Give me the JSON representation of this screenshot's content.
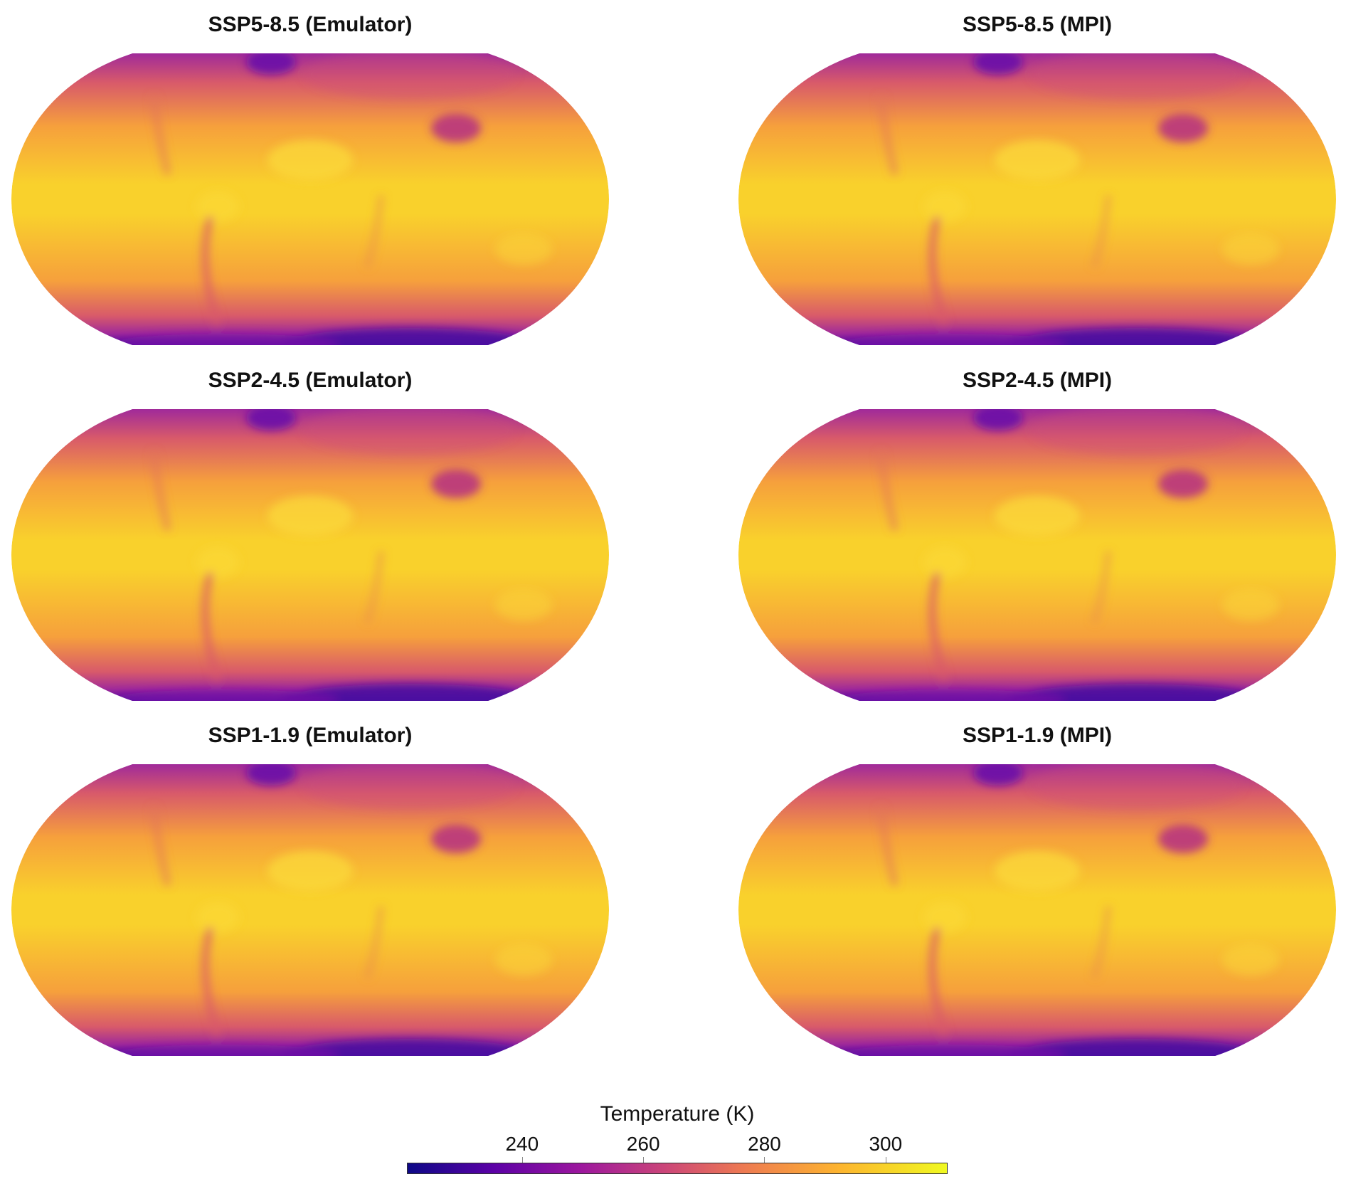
{
  "panels": [
    {
      "title": "SSP5-8.5 (Emulator)",
      "scenario": "SSP5-8.5",
      "source": "Emulator"
    },
    {
      "title": "SSP5-8.5 (MPI)",
      "scenario": "SSP5-8.5",
      "source": "MPI"
    },
    {
      "title": "SSP2-4.5 (Emulator)",
      "scenario": "SSP2-4.5",
      "source": "Emulator"
    },
    {
      "title": "SSP2-4.5 (MPI)",
      "scenario": "SSP2-4.5",
      "source": "MPI"
    },
    {
      "title": "SSP1-1.9 (Emulator)",
      "scenario": "SSP1-1.9",
      "source": "Emulator"
    },
    {
      "title": "SSP1-1.9 (MPI)",
      "scenario": "SSP1-1.9",
      "source": "MPI"
    }
  ],
  "colorbar": {
    "label": "Temperature (K)",
    "min": 221,
    "max": 310,
    "ticks": [
      "240",
      "260",
      "280",
      "300"
    ],
    "colormap": "plasma",
    "colors": [
      "#0d0887",
      "#5c01a6",
      "#9c179e",
      "#cc4778",
      "#ed7953",
      "#fdb42f",
      "#f0f921"
    ]
  },
  "map_colors": {
    "equator": "#f9d12c",
    "midlat": "#f6a03c",
    "high": "#d85a6a",
    "polar": "#a02a9a",
    "antarctic": "#4a0aa0"
  }
}
